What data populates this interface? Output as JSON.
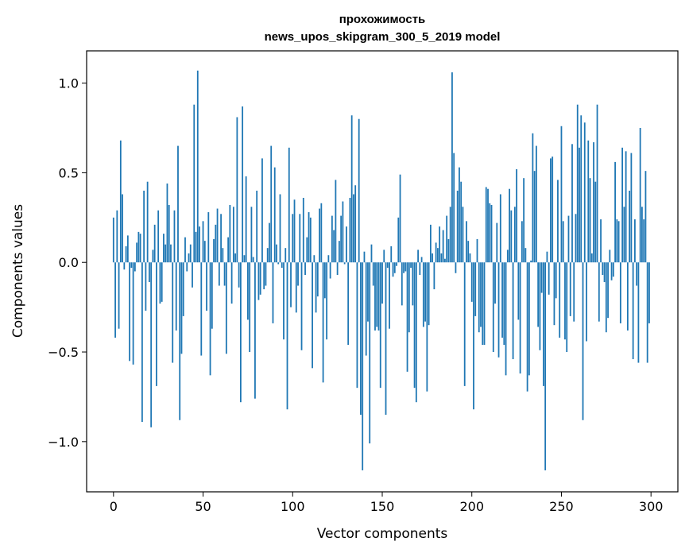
{
  "chart_data": {
    "type": "bar",
    "title_line1": "прохожимость",
    "title_line2": "news_upos_skipgram_300_5_2019 model",
    "xlabel": "Vector components",
    "ylabel": "Components values",
    "xlim": [
      -15,
      315
    ],
    "ylim": [
      -1.28,
      1.18
    ],
    "xticks": [
      0,
      50,
      100,
      150,
      200,
      250,
      300
    ],
    "xtick_labels": [
      "0",
      "50",
      "100",
      "150",
      "200",
      "250",
      "300"
    ],
    "yticks": [
      -1.0,
      -0.5,
      0.0,
      0.5,
      1.0
    ],
    "ytick_labels": [
      "−1.0",
      "−0.5",
      "0.0",
      "0.5",
      "1.0"
    ],
    "bar_color": "#1f77b4",
    "grid": false,
    "legend": "none",
    "values": [
      0.25,
      -0.42,
      0.29,
      -0.37,
      0.68,
      0.38,
      -0.04,
      0.09,
      0.15,
      -0.55,
      -0.03,
      -0.57,
      -0.05,
      0.11,
      0.17,
      0.16,
      -0.89,
      0.4,
      -0.27,
      0.45,
      -0.11,
      -0.92,
      0.07,
      0.21,
      -0.69,
      0.29,
      -0.23,
      -0.22,
      0.16,
      0.1,
      0.44,
      0.32,
      0.1,
      -0.56,
      0.29,
      -0.38,
      0.65,
      -0.88,
      -0.51,
      -0.3,
      0.14,
      -0.05,
      0.05,
      0.1,
      -0.14,
      0.88,
      0.17,
      1.07,
      0.2,
      -0.52,
      0.23,
      0.12,
      -0.27,
      0.28,
      -0.63,
      -0.37,
      0.13,
      0.21,
      0.3,
      -0.13,
      0.27,
      0.08,
      -0.13,
      -0.51,
      0.14,
      0.32,
      -0.23,
      0.31,
      0.05,
      0.81,
      -0.14,
      -0.78,
      0.87,
      0.04,
      0.48,
      -0.32,
      -0.5,
      0.31,
      0.03,
      -0.76,
      0.4,
      -0.21,
      -0.18,
      0.58,
      -0.15,
      -0.13,
      0.08,
      0.22,
      0.65,
      -0.34,
      0.53,
      0.1,
      -0.01,
      0.38,
      -0.03,
      -0.43,
      0.08,
      -0.82,
      0.64,
      -0.25,
      0.27,
      0.35,
      -0.28,
      -0.13,
      0.27,
      -0.49,
      0.36,
      -0.07,
      0.14,
      0.28,
      0.25,
      -0.59,
      0.04,
      -0.28,
      -0.19,
      0.3,
      0.33,
      -0.67,
      -0.2,
      -0.43,
      0.04,
      -0.09,
      0.26,
      0.18,
      0.46,
      -0.07,
      0.12,
      0.26,
      0.34,
      -0.01,
      0.2,
      -0.46,
      0.36,
      0.82,
      0.38,
      0.43,
      -0.7,
      0.8,
      -0.85,
      -1.16,
      0.06,
      -0.52,
      -0.33,
      -1.01,
      0.1,
      -0.13,
      -0.38,
      -0.36,
      -0.38,
      -0.7,
      -0.23,
      0.07,
      -0.85,
      -0.03,
      -0.37,
      0.09,
      -0.08,
      -0.06,
      -0.02,
      0.25,
      0.49,
      -0.24,
      -0.06,
      -0.05,
      -0.61,
      -0.39,
      -0.03,
      -0.24,
      -0.7,
      -0.78,
      0.07,
      -0.07,
      0.03,
      -0.36,
      -0.33,
      -0.72,
      -0.35,
      0.21,
      0.05,
      -0.15,
      0.11,
      0.08,
      0.2,
      0.05,
      0.18,
      0.02,
      0.26,
      0.13,
      0.31,
      1.06,
      0.61,
      -0.06,
      0.4,
      0.53,
      0.45,
      0.31,
      -0.69,
      0.23,
      0.12,
      0.05,
      -0.22,
      -0.82,
      -0.3,
      0.13,
      -0.39,
      -0.36,
      -0.46,
      -0.46,
      0.42,
      0.41,
      0.33,
      0.32,
      -0.5,
      -0.23,
      0.22,
      -0.53,
      0.38,
      -0.42,
      -0.46,
      -0.63,
      0.07,
      0.41,
      0.29,
      -0.54,
      0.31,
      0.52,
      -0.32,
      -0.62,
      0.23,
      0.47,
      0.08,
      -0.72,
      -0.63,
      0.01,
      0.72,
      0.51,
      0.65,
      -0.36,
      -0.49,
      -0.17,
      -0.69,
      -1.16,
      0.06,
      -0.18,
      0.58,
      0.59,
      -0.35,
      -0.2,
      0.46,
      -0.42,
      0.76,
      0.23,
      -0.43,
      -0.5,
      0.26,
      -0.3,
      0.66,
      -0.33,
      0.27,
      0.88,
      0.64,
      0.82,
      -0.88,
      0.78,
      -0.44,
      0.68,
      0.47,
      0.05,
      0.67,
      0.45,
      0.88,
      -0.33,
      0.24,
      -0.07,
      -0.11,
      -0.39,
      -0.31,
      0.07,
      -0.1,
      -0.08,
      0.56,
      0.24,
      0.23,
      -0.34,
      0.64,
      0.31,
      0.62,
      -0.38,
      0.4,
      0.61,
      -0.54,
      0.24,
      -0.13,
      -0.56,
      0.75,
      0.31,
      0.24,
      0.51,
      -0.56,
      -0.34
    ]
  }
}
